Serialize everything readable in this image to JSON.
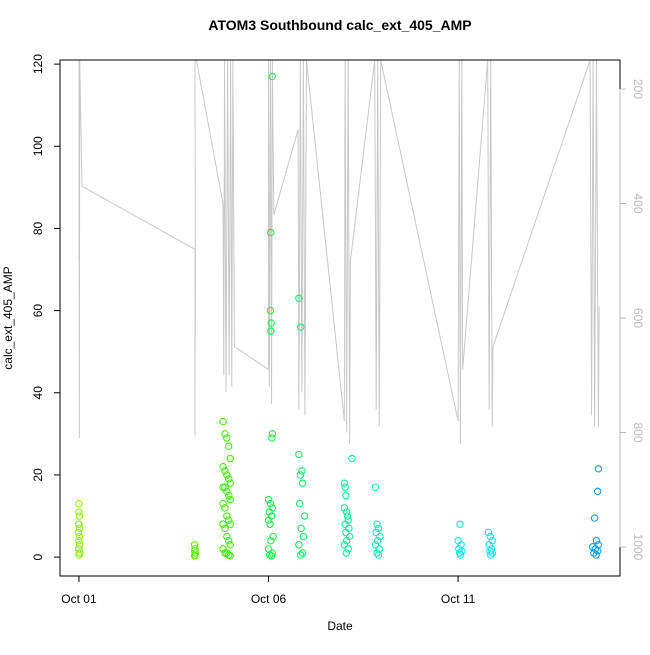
{
  "chart_data": {
    "type": "scatter",
    "title": "ATOM3 Southbound calc_ext_405_AMP",
    "xlabel": "Date",
    "ylabel": "calc_ext_405_AMP",
    "xlim": [
      0.5,
      15.27
    ],
    "xticks": [
      {
        "value": 1,
        "label": "Oct 01"
      },
      {
        "value": 6,
        "label": "Oct 06"
      },
      {
        "value": 11,
        "label": "Oct 11"
      }
    ],
    "ylim": [
      -4.6,
      121
    ],
    "yticks": [
      0,
      20,
      40,
      60,
      80,
      100,
      120
    ],
    "y2lim": [
      1050.7,
      149.3
    ],
    "y2ticks": [
      200,
      400,
      600,
      800,
      1000
    ],
    "y2color": "#bbbbbb",
    "series": [
      {
        "type": "scatter",
        "color": "#8ef000",
        "x": [
          1.0,
          1.0,
          1.01,
          0.99,
          1.0,
          1.02,
          0.99,
          1.01,
          1.0,
          1.02,
          0.99,
          1.0,
          1.01,
          1.02,
          1.0
        ],
        "values": [
          13,
          11,
          10,
          8,
          8,
          7,
          6,
          5,
          4,
          3,
          2,
          2,
          1,
          1,
          0.5
        ]
      },
      {
        "type": "scatter",
        "color": "#5af000",
        "x": [
          4.05,
          4.06,
          4.05,
          4.07,
          4.06,
          4.05
        ],
        "values": [
          3,
          2,
          1.5,
          1,
          0.5,
          0.3
        ]
      },
      {
        "type": "scatter",
        "color": "#3cf000",
        "x": [
          4.8,
          4.85,
          4.9,
          4.95,
          4.99,
          4.8,
          4.85,
          4.9,
          4.95,
          4.99,
          4.8,
          4.85,
          4.9,
          4.95,
          4.99,
          4.8,
          4.85,
          4.9,
          4.95,
          4.99,
          4.8,
          4.85,
          4.9,
          4.95,
          4.99,
          4.8,
          4.85,
          4.9,
          4.95,
          4.99
        ],
        "values": [
          33,
          30,
          29,
          27,
          24,
          22,
          21,
          20,
          19,
          18,
          17,
          17,
          16,
          15,
          14,
          13,
          12,
          10,
          9,
          8,
          8,
          7,
          5,
          4,
          3,
          2,
          1,
          1,
          0.5,
          0.3
        ]
      },
      {
        "type": "scatter",
        "color": "#10f040",
        "x": [
          6.1,
          6.06,
          6.05,
          6.07,
          6.06,
          6.1,
          6.09,
          6.0,
          6.05,
          6.1,
          6.02,
          6.08,
          6.0,
          6.04,
          6.12,
          6.06,
          6.0,
          6.1,
          6.03,
          6.08
        ],
        "values": [
          117,
          79,
          60,
          57,
          55,
          30,
          29,
          14,
          13,
          12,
          11,
          10,
          9,
          8,
          5,
          4,
          2,
          1,
          0.5,
          0.3
        ]
      },
      {
        "type": "scatter",
        "color": "#00f060",
        "x": [
          6.8,
          6.85,
          6.8,
          6.88,
          6.84,
          6.9,
          6.82,
          6.95,
          6.86,
          6.92,
          6.8,
          6.9,
          6.85
        ],
        "values": [
          63,
          56,
          25,
          21,
          20,
          18,
          13,
          10,
          7,
          5,
          3,
          1,
          0.5
        ]
      },
      {
        "type": "scatter",
        "color": "#00f090",
        "x": [
          8.2,
          8.0,
          8.02,
          8.04,
          8.0,
          8.06,
          8.08,
          8.1,
          8.02,
          8.12,
          8.04,
          8.14,
          8.06,
          8.0,
          8.1,
          8.05
        ],
        "values": [
          24,
          18,
          17,
          15,
          12,
          11,
          10,
          9,
          8,
          7,
          6,
          5,
          4,
          3,
          2,
          1
        ]
      },
      {
        "type": "scatter",
        "color": "#00f0b0",
        "x": [
          8.82,
          8.86,
          8.9,
          8.84,
          8.94,
          8.88,
          8.82,
          8.92,
          8.86,
          8.9
        ],
        "values": [
          17,
          8,
          7,
          6,
          5,
          4,
          3,
          2,
          1,
          0.5
        ]
      },
      {
        "type": "scatter",
        "color": "#00f0e0",
        "x": [
          11.05,
          11.0,
          11.08,
          11.02,
          11.1,
          11.04,
          11.06
        ],
        "values": [
          8,
          4,
          3,
          2,
          1.5,
          1,
          0.5
        ]
      },
      {
        "type": "scatter",
        "color": "#00e8f0",
        "x": [
          11.8,
          11.85,
          11.9,
          11.82,
          11.88,
          11.84,
          11.9,
          11.86
        ],
        "values": [
          6,
          5,
          4,
          3,
          2,
          1.5,
          1,
          0.5
        ]
      },
      {
        "type": "scatter",
        "color": "#0098f0",
        "x": [
          14.7,
          14.68,
          14.6,
          14.65,
          14.7,
          14.55,
          14.62,
          14.68,
          14.58,
          14.64
        ],
        "values": [
          21.5,
          16,
          9.5,
          4,
          3,
          2.5,
          2,
          1.5,
          1,
          0.5
        ]
      },
      {
        "type": "line",
        "axis": "y2",
        "color": "#c8c8c8",
        "x": [
          1.0,
          1.0,
          1.01,
          1.02,
          1.08,
          4.06,
          4.06,
          4.07,
          4.06,
          4.1,
          4.8,
          4.82,
          4.84,
          4.88,
          4.92,
          4.96,
          5.0,
          5.03,
          5.06,
          5.1,
          6.0,
          6.0,
          6.02,
          6.05,
          6.08,
          6.1,
          6.14,
          6.78,
          6.8,
          6.84,
          6.88,
          6.92,
          6.96,
          7.0,
          8.0,
          8.02,
          8.06,
          8.1,
          8.14,
          8.16,
          8.8,
          8.84,
          8.88,
          8.92,
          8.96,
          11.0,
          11.03,
          11.06,
          11.1,
          11.12,
          11.78,
          11.82,
          11.86,
          11.9,
          11.92,
          14.48,
          14.52,
          14.56,
          14.6,
          14.65,
          14.7,
          14.72
        ],
        "values": [
          500,
          150,
          810,
          150,
          370,
          480,
          805,
          500,
          150,
          150,
          400,
          700,
          150,
          730,
          150,
          700,
          150,
          720,
          150,
          650,
          690,
          150,
          720,
          150,
          750,
          150,
          420,
          271,
          760,
          150,
          730,
          150,
          770,
          150,
          780,
          150,
          800,
          150,
          820,
          500,
          150,
          760,
          150,
          790,
          150,
          780,
          150,
          820,
          150,
          690,
          150,
          760,
          150,
          790,
          650,
          150,
          770,
          150,
          790,
          150,
          790,
          580
        ]
      }
    ],
    "grid": false
  }
}
